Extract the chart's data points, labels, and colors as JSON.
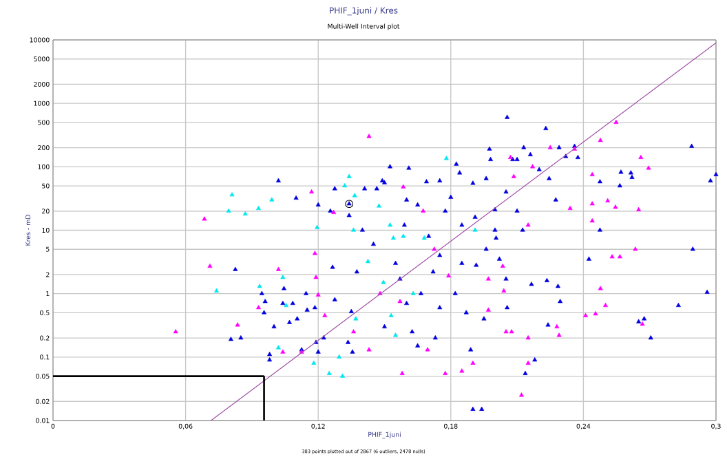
{
  "chart_data": {
    "type": "scatter",
    "title": "PHIF_1juni / Kres",
    "subtitle": "Multi-Well Interval plot",
    "xlabel": "PHIF_1juni",
    "ylabel": "Kres - mD",
    "annotations": [
      "383 points plotted out of 2867 (6 outliers, 2478 nulls)"
    ],
    "xlim": [
      0,
      0.3
    ],
    "ylim": [
      0.01,
      10000
    ],
    "log": "y",
    "grid": true,
    "marker": "triangle",
    "xticks": [
      0,
      {
        "value": 0.06,
        "label": "0,06"
      },
      {
        "value": 0.12,
        "label": "0,12"
      },
      {
        "value": 0.18,
        "label": "0,18"
      },
      {
        "value": 0.24,
        "label": "0,24"
      },
      {
        "value": 0.3,
        "label": "0,3"
      }
    ],
    "yticks": [
      0.01,
      0.02,
      0.05,
      0.1,
      0.2,
      0.5,
      1,
      2,
      5,
      10,
      20,
      50,
      100,
      200,
      500,
      1000,
      2000,
      5000,
      10000
    ],
    "series": [
      {
        "color": "#0000dd",
        "x": [
          0.0805,
          0.085,
          0.0825,
          0.098,
          0.098,
          0.0945,
          0.096,
          0.0955,
          0.1,
          0.104,
          0.1045,
          0.102,
          0.11,
          0.1085,
          0.1105,
          0.1125,
          0.1145,
          0.1185,
          0.119,
          0.1225,
          0.12,
          0.1275,
          0.1255,
          0.1275,
          0.1265,
          0.1335,
          0.1355,
          0.134,
          0.135,
          0.1375,
          0.141,
          0.1465,
          0.149,
          0.1525,
          0.15,
          0.157,
          0.161,
          0.159,
          0.1625,
          0.1665,
          0.169,
          0.172,
          0.173,
          0.175,
          0.1775,
          0.18,
          0.1825,
          0.184,
          0.182,
          0.19,
          0.191,
          0.1915,
          0.189,
          0.19,
          0.194,
          0.1975,
          0.198,
          0.196,
          0.2,
          0.2005,
          0.202,
          0.2055,
          0.2055,
          0.208,
          0.21,
          0.213,
          0.216,
          0.22,
          0.223,
          0.229,
          0.2275,
          0.2245,
          0.2295,
          0.2137,
          0.218,
          0.224,
          0.2285,
          0.2235,
          0.2165,
          0.205,
          0.236,
          0.232,
          0.2375,
          0.2475,
          0.2565,
          0.2615,
          0.289,
          0.2975,
          0.3,
          0.257,
          0.262,
          0.2425,
          0.2475,
          0.2895,
          0.296,
          0.283,
          0.265,
          0.2675,
          0.2705,
          0.134,
          0.16,
          0.165,
          0.17,
          0.175,
          0.185,
          0.187,
          0.195,
          0.205,
          0.21,
          0.2125,
          0.2,
          0.196,
          0.185,
          0.14,
          0.145,
          0.155,
          0.16,
          0.15,
          0.165,
          0.175,
          0.12,
          0.107,
          0.115
        ],
        "values": [
          0.19,
          0.2,
          2.4,
          0.11,
          0.09,
          1,
          0.75,
          0.5,
          0.3,
          0.7,
          1.2,
          60,
          32,
          0.7,
          0.4,
          0.13,
          1,
          0.6,
          0.17,
          0.2,
          25,
          45,
          20,
          0.8,
          2.6,
          0.17,
          0.12,
          17,
          0.52,
          2.2,
          45,
          45,
          60,
          100,
          56,
          1.7,
          95,
          12,
          0.25,
          1,
          58,
          2.2,
          0.2,
          60,
          20,
          33,
          110,
          80,
          1,
          55,
          16,
          2.8,
          0.13,
          0.015,
          0.015,
          190,
          130,
          65,
          21,
          7.5,
          3.5,
          0.6,
          600,
          130,
          130,
          200,
          155,
          90,
          400,
          200,
          30,
          65,
          0.75,
          0.055,
          0.09,
          0.32,
          1.3,
          1.6,
          1.4,
          1.7,
          210,
          145,
          140,
          58,
          50,
          80,
          210,
          60,
          75,
          82,
          68,
          3.5,
          10,
          5,
          1.05,
          0.65,
          0.36,
          0.4,
          0.2,
          26,
          30,
          25,
          8,
          4,
          3,
          0.5,
          0.4,
          40,
          20,
          10,
          10,
          5,
          12,
          10,
          6,
          3,
          0.7,
          0.3,
          0.15,
          0.6,
          0.12,
          0.35,
          0.55
        ]
      },
      {
        "color": "#ff00ff",
        "x": [
          0.0555,
          0.0685,
          0.071,
          0.0835,
          0.093,
          0.102,
          0.104,
          0.1125,
          0.117,
          0.1185,
          0.119,
          0.12,
          0.123,
          0.127,
          0.136,
          0.143,
          0.143,
          0.148,
          0.1585,
          0.157,
          0.158,
          0.1675,
          0.1695,
          0.1725,
          0.179,
          0.1775,
          0.185,
          0.19,
          0.197,
          0.197,
          0.2035,
          0.204,
          0.205,
          0.2075,
          0.2085,
          0.207,
          0.215,
          0.215,
          0.212,
          0.217,
          0.215,
          0.225,
          0.228,
          0.229,
          0.236,
          0.234,
          0.244,
          0.2548,
          0.2477,
          0.266,
          0.2695,
          0.244,
          0.251,
          0.2545,
          0.265,
          0.244,
          0.2635,
          0.253,
          0.2565,
          0.2477,
          0.25,
          0.241,
          0.2455,
          0.2667
        ],
        "values": [
          0.25,
          15,
          2.7,
          0.32,
          0.6,
          2.4,
          0.12,
          0.12,
          40,
          4.3,
          1.8,
          0.95,
          0.45,
          19,
          0.25,
          300,
          0.13,
          1,
          48,
          0.75,
          0.055,
          20,
          0.13,
          5,
          1.9,
          0.055,
          0.06,
          0.08,
          0.55,
          1.7,
          2.7,
          1.1,
          0.25,
          0.25,
          70,
          140,
          0.2,
          0.08,
          0.025,
          100,
          12,
          200,
          0.3,
          0.22,
          190,
          22,
          75,
          500,
          260,
          140,
          95,
          26,
          29,
          23,
          21,
          14,
          5,
          3.8,
          3.8,
          1.2,
          0.65,
          0.45,
          0.48,
          0.33
        ]
      },
      {
        "color": "#00e8f0",
        "x": [
          0.081,
          0.0795,
          0.087,
          0.093,
          0.099,
          0.0935,
          0.074,
          0.102,
          0.104,
          0.1055,
          0.1195,
          0.118,
          0.125,
          0.131,
          0.1295,
          0.134,
          0.132,
          0.1365,
          0.136,
          0.1425,
          0.1475,
          0.1525,
          0.154,
          0.1585,
          0.153,
          0.155,
          0.178,
          0.168,
          0.191,
          0.163,
          0.1495,
          0.137
        ],
        "values": [
          36,
          20,
          18,
          22,
          30,
          1.3,
          1.1,
          0.14,
          1.8,
          0.65,
          11,
          0.08,
          0.055,
          0.05,
          0.1,
          70,
          50,
          35,
          10,
          3.2,
          24,
          12,
          7.5,
          8,
          0.45,
          0.22,
          135,
          7.5,
          10,
          1,
          1.5,
          0.4
        ]
      },
      {
        "color": "#000000",
        "marker": "circle",
        "x": [
          0.134
        ],
        "values": [
          26
        ]
      },
      {
        "type": "line",
        "color": "#a050a8",
        "marker": "none",
        "x": [
          0.0715,
          0.3
        ],
        "values": [
          0.01,
          9000
        ]
      },
      {
        "type": "line",
        "color": "#000000",
        "marker": "none",
        "x": [
          0,
          0.0955
        ],
        "values": [
          0.05,
          0.05
        ]
      },
      {
        "type": "line",
        "color": "#000000",
        "marker": "none",
        "x": [
          0.0955,
          0.0955
        ],
        "values": [
          0.05,
          0.01
        ]
      }
    ]
  }
}
